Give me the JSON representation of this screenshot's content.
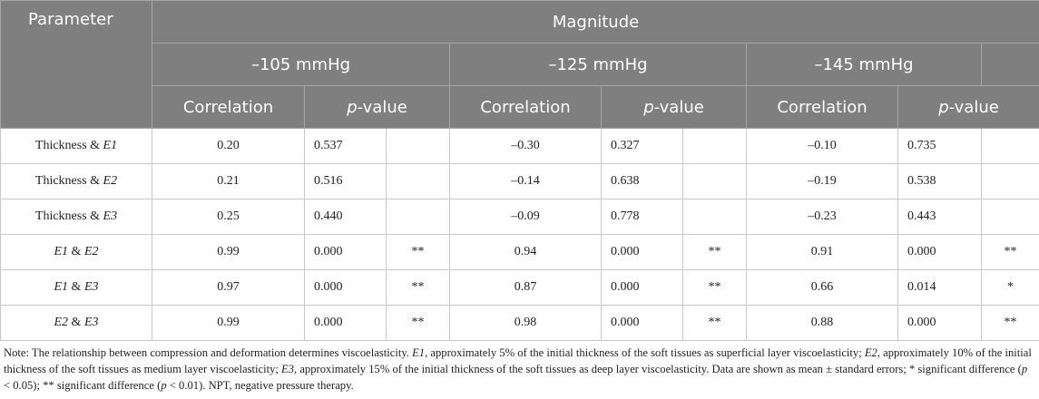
{
  "header": {
    "parameter": "Parameter",
    "magnitude": "Magnitude",
    "pressures": [
      "–105 mmHg",
      "–125 mmHg",
      "–145 mmHg"
    ],
    "correlation": "Correlation",
    "p_value": [
      {
        "text": "p",
        "italic": true
      },
      {
        "text": "-value"
      }
    ]
  },
  "rows": [
    {
      "parameter": [
        {
          "text": "Thickness & "
        },
        {
          "text": "E1",
          "italic": true
        }
      ],
      "groups": [
        {
          "correlation": "0.20",
          "p": "0.537",
          "sig": null
        },
        {
          "correlation": "–0.30",
          "p": "0.327",
          "sig": null
        },
        {
          "correlation": "–0.10",
          "p": "0.735",
          "sig": null
        }
      ]
    },
    {
      "parameter": [
        {
          "text": "Thickness & "
        },
        {
          "text": "E2",
          "italic": true
        }
      ],
      "groups": [
        {
          "correlation": "0.21",
          "p": "0.516",
          "sig": null
        },
        {
          "correlation": "–0.14",
          "p": "0.638",
          "sig": null
        },
        {
          "correlation": "–0.19",
          "p": "0.538",
          "sig": null
        }
      ]
    },
    {
      "parameter": [
        {
          "text": "Thickness & "
        },
        {
          "text": "E3",
          "italic": true
        }
      ],
      "groups": [
        {
          "correlation": "0.25",
          "p": "0.440",
          "sig": null
        },
        {
          "correlation": "–0.09",
          "p": "0.778",
          "sig": null
        },
        {
          "correlation": "–0.23",
          "p": "0.443",
          "sig": null
        }
      ]
    },
    {
      "parameter": [
        {
          "text": "E1",
          "italic": true
        },
        {
          "text": " & "
        },
        {
          "text": "E2",
          "italic": true
        }
      ],
      "groups": [
        {
          "correlation": "0.99",
          "p": "0.000",
          "sig": "**"
        },
        {
          "correlation": "0.94",
          "p": "0.000",
          "sig": "**"
        },
        {
          "correlation": "0.91",
          "p": "0.000",
          "sig": "**"
        }
      ]
    },
    {
      "parameter": [
        {
          "text": "E1",
          "italic": true
        },
        {
          "text": " & "
        },
        {
          "text": "E3",
          "italic": true
        }
      ],
      "groups": [
        {
          "correlation": "0.97",
          "p": "0.000",
          "sig": "**"
        },
        {
          "correlation": "0.87",
          "p": "0.000",
          "sig": "**"
        },
        {
          "correlation": "0.66",
          "p": "0.014",
          "sig": "*"
        }
      ]
    },
    {
      "parameter": [
        {
          "text": "E2",
          "italic": true
        },
        {
          "text": " & "
        },
        {
          "text": "E3",
          "italic": true
        }
      ],
      "groups": [
        {
          "correlation": "0.99",
          "p": "0.000",
          "sig": "**"
        },
        {
          "correlation": "0.98",
          "p": "0.000",
          "sig": "**"
        },
        {
          "correlation": "0.88",
          "p": "0.000",
          "sig": "**"
        }
      ]
    }
  ],
  "note": [
    {
      "text": "Note: The relationship between compression and deformation determines viscoelasticity. "
    },
    {
      "text": "E1",
      "italic": true
    },
    {
      "text": ", approximately 5% of the initial thickness of the soft tissues as superficial layer viscoelasticity; "
    },
    {
      "text": "E2",
      "italic": true
    },
    {
      "text": ", approximately 10% of the initial thickness of the soft tissues as medium layer viscoelasticity; "
    },
    {
      "text": "E3",
      "italic": true
    },
    {
      "text": ", approximately 15% of the initial thickness of the soft tissues as deep layer viscoelasticity. Data are shown as mean ± standard errors; * significant difference ("
    },
    {
      "text": "p",
      "italic": true
    },
    {
      "text": " < 0.05); ** significant difference ("
    },
    {
      "text": "p",
      "italic": true
    },
    {
      "text": " < 0.01). NPT, negative pressure therapy."
    }
  ]
}
